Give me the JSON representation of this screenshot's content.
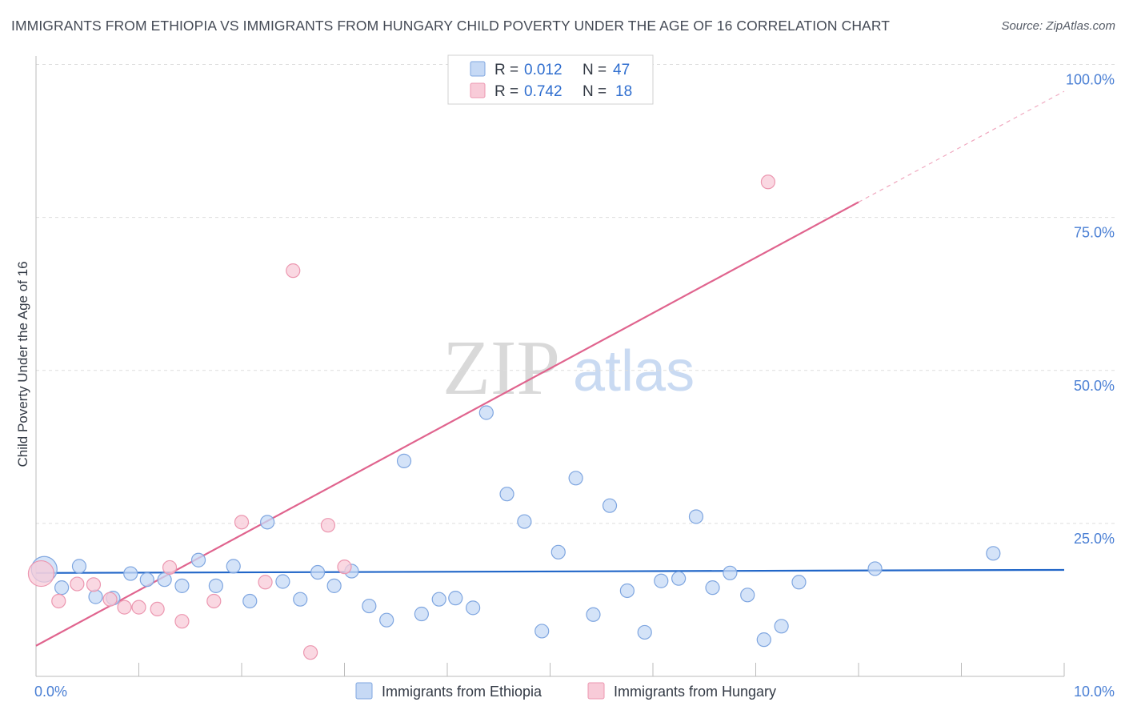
{
  "title": "IMMIGRANTS FROM ETHIOPIA VS IMMIGRANTS FROM HUNGARY CHILD POVERTY UNDER THE AGE OF 16 CORRELATION CHART",
  "source": "Source: ZipAtlas.com",
  "watermark": {
    "zip": "ZIP",
    "atlas": "atlas"
  },
  "colors": {
    "ethiopia_fill": "#c6d9f5",
    "ethiopia_stroke": "#7fa6e0",
    "ethiopia_line": "#2166c8",
    "hungary_fill": "#f8cbd8",
    "hungary_stroke": "#ec97b0",
    "hungary_line": "#e0648e",
    "tick_text": "#4a7fd4",
    "grid": "#dddddd"
  },
  "legend": {
    "r_label": "R =",
    "n_label": "N =",
    "ethiopia_r": "0.012",
    "ethiopia_n": "47",
    "hungary_r": "0.742",
    "hungary_n": "18"
  },
  "chart_data": {
    "type": "scatter",
    "title": "IMMIGRANTS FROM ETHIOPIA VS IMMIGRANTS FROM HUNGARY CHILD POVERTY UNDER THE AGE OF 16 CORRELATION CHART",
    "xlabel": "",
    "ylabel": "Child Poverty Under the Age of 16",
    "xlim": [
      0,
      10
    ],
    "ylim": [
      0,
      100
    ],
    "x_tick_labels": [
      "0.0%",
      "10.0%"
    ],
    "y_ticks": [
      25,
      50,
      75,
      100
    ],
    "y_tick_labels": [
      "25.0%",
      "50.0%",
      "75.0%",
      "100.0%"
    ],
    "grid": true,
    "legend_position": "top-center",
    "series": [
      {
        "name": "Immigrants from Ethiopia",
        "color": "#2166c8",
        "r": 0.012,
        "n": 47,
        "trend": {
          "x0": 0,
          "y0": 16.9,
          "x1": 10,
          "y1": 17.4
        },
        "points": [
          {
            "x": 0.08,
            "y": 17.5,
            "size": "large"
          },
          {
            "x": 0.25,
            "y": 14.5
          },
          {
            "x": 0.42,
            "y": 18.0
          },
          {
            "x": 0.58,
            "y": 13.0
          },
          {
            "x": 0.75,
            "y": 12.8
          },
          {
            "x": 0.92,
            "y": 16.8
          },
          {
            "x": 1.08,
            "y": 15.8
          },
          {
            "x": 1.25,
            "y": 15.8
          },
          {
            "x": 1.42,
            "y": 14.8
          },
          {
            "x": 1.58,
            "y": 19.0
          },
          {
            "x": 1.75,
            "y": 14.8
          },
          {
            "x": 1.92,
            "y": 18.0
          },
          {
            "x": 2.08,
            "y": 12.3
          },
          {
            "x": 2.25,
            "y": 25.2
          },
          {
            "x": 2.4,
            "y": 15.5
          },
          {
            "x": 2.57,
            "y": 12.6
          },
          {
            "x": 2.74,
            "y": 17.0
          },
          {
            "x": 2.9,
            "y": 14.8
          },
          {
            "x": 3.07,
            "y": 17.2
          },
          {
            "x": 3.24,
            "y": 11.5
          },
          {
            "x": 3.41,
            "y": 9.2
          },
          {
            "x": 3.58,
            "y": 35.2
          },
          {
            "x": 3.75,
            "y": 10.2
          },
          {
            "x": 3.92,
            "y": 12.6
          },
          {
            "x": 4.08,
            "y": 12.8
          },
          {
            "x": 4.25,
            "y": 11.2
          },
          {
            "x": 4.38,
            "y": 43.1
          },
          {
            "x": 4.58,
            "y": 29.8
          },
          {
            "x": 4.75,
            "y": 25.3
          },
          {
            "x": 4.92,
            "y": 7.4
          },
          {
            "x": 5.08,
            "y": 20.3
          },
          {
            "x": 5.25,
            "y": 32.4
          },
          {
            "x": 5.42,
            "y": 10.1
          },
          {
            "x": 5.58,
            "y": 27.9
          },
          {
            "x": 5.75,
            "y": 14.0
          },
          {
            "x": 5.92,
            "y": 7.2
          },
          {
            "x": 6.08,
            "y": 15.6
          },
          {
            "x": 6.25,
            "y": 16.0
          },
          {
            "x": 6.42,
            "y": 26.1
          },
          {
            "x": 6.58,
            "y": 14.5
          },
          {
            "x": 6.75,
            "y": 16.9
          },
          {
            "x": 6.92,
            "y": 13.3
          },
          {
            "x": 7.08,
            "y": 6.0
          },
          {
            "x": 7.25,
            "y": 8.2
          },
          {
            "x": 7.42,
            "y": 15.4
          },
          {
            "x": 8.16,
            "y": 17.6
          },
          {
            "x": 9.31,
            "y": 20.1
          }
        ]
      },
      {
        "name": "Immigrants from Hungary",
        "color": "#e0648e",
        "r": 0.742,
        "n": 18,
        "trend": {
          "x0": 0,
          "y0": 5.0,
          "x1": 8.0,
          "y1": 77.5,
          "dash_x1": 10,
          "dash_y1": 95.6
        },
        "points": [
          {
            "x": 0.05,
            "y": 16.8,
            "size": "large"
          },
          {
            "x": 0.22,
            "y": 12.3
          },
          {
            "x": 0.4,
            "y": 15.1
          },
          {
            "x": 0.56,
            "y": 15.0
          },
          {
            "x": 0.72,
            "y": 12.6
          },
          {
            "x": 0.86,
            "y": 11.3
          },
          {
            "x": 1.0,
            "y": 11.3
          },
          {
            "x": 1.18,
            "y": 11.0
          },
          {
            "x": 1.3,
            "y": 17.8
          },
          {
            "x": 1.42,
            "y": 9.0
          },
          {
            "x": 1.73,
            "y": 12.3
          },
          {
            "x": 2.0,
            "y": 25.2
          },
          {
            "x": 2.23,
            "y": 15.4
          },
          {
            "x": 2.5,
            "y": 66.3
          },
          {
            "x": 2.67,
            "y": 3.9
          },
          {
            "x": 2.84,
            "y": 24.7
          },
          {
            "x": 3.0,
            "y": 17.9
          },
          {
            "x": 7.12,
            "y": 80.8
          }
        ]
      }
    ]
  },
  "bottom_legend": {
    "ethiopia_label": "Immigrants from Ethiopia",
    "hungary_label": "Immigrants from Hungary"
  }
}
